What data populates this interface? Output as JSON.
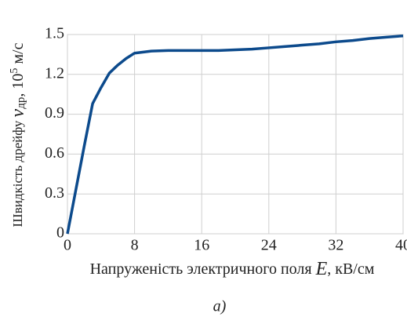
{
  "chart_data": {
    "type": "line",
    "xlabel": [
      "Напруженість электричного поля ",
      "E",
      ", кВ/см"
    ],
    "ylabel": [
      "Швидкість  дрейфу ",
      "v",
      "др",
      ", 10",
      "5",
      " м/с"
    ],
    "caption": "а)",
    "x": [
      0,
      1,
      2,
      3,
      4,
      5,
      6,
      7,
      8,
      10,
      12,
      14,
      16,
      18,
      20,
      22,
      24,
      26,
      28,
      30,
      32,
      34,
      36,
      38,
      40
    ],
    "series": [
      {
        "color": "#0c4a8c",
        "values": [
          0,
          0.33,
          0.66,
          0.98,
          1.1,
          1.21,
          1.27,
          1.32,
          1.36,
          1.375,
          1.38,
          1.38,
          1.38,
          1.38,
          1.385,
          1.39,
          1.4,
          1.41,
          1.42,
          1.43,
          1.445,
          1.455,
          1.47,
          1.48,
          1.49
        ]
      }
    ],
    "xlim": [
      0,
      40
    ],
    "xticks": [
      0,
      8,
      16,
      24,
      32,
      40
    ],
    "ylim": [
      0,
      1.5
    ],
    "yticks": [
      0,
      0.3,
      0.6,
      0.9,
      1.2,
      1.5
    ],
    "grid": true
  }
}
